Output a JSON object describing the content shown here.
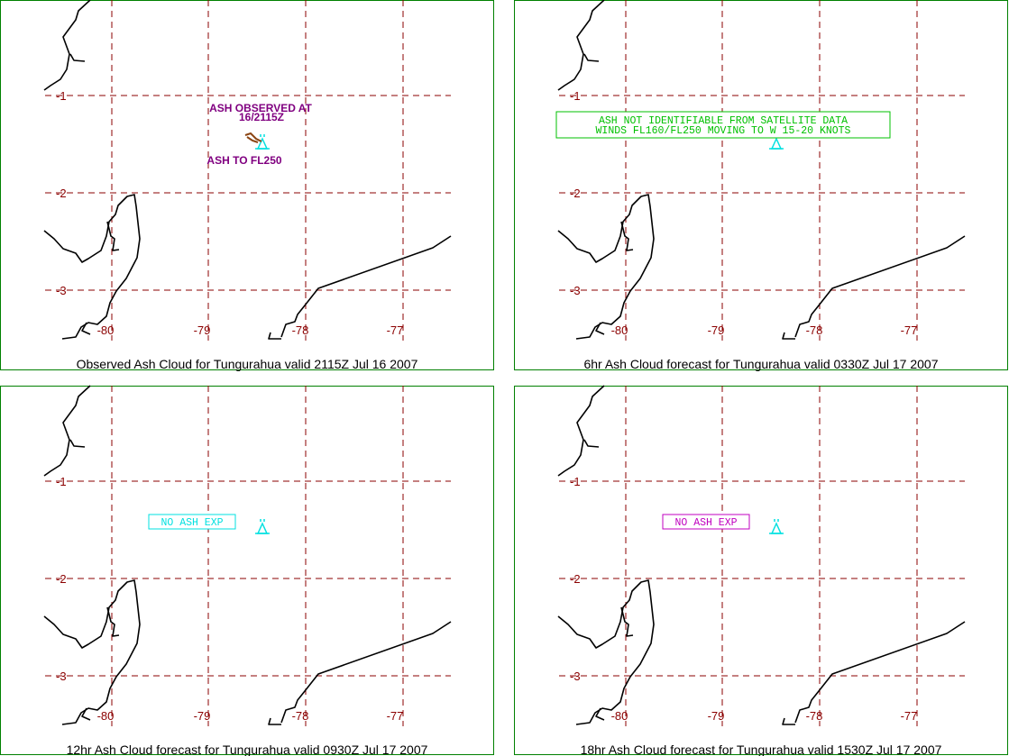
{
  "panels": [
    {
      "caption": "Observed Ash Cloud for Tungurahua valid 2115Z Jul 16 2007",
      "lat_labels": [
        "-1",
        "-2",
        "-3"
      ],
      "lon_labels": [
        "-80",
        "-79",
        "-78",
        "-77"
      ],
      "annotations": [
        {
          "text": "ASH OBSERVED AT",
          "color": "#800080"
        },
        {
          "text": "16/2115Z",
          "color": "#800080"
        },
        {
          "text": "ASH TO FL250",
          "color": "#800080"
        }
      ],
      "boxed_text": [],
      "has_ash_symbol": true,
      "volcano_icon": "volcano-icon"
    },
    {
      "caption": "6hr Ash Cloud forecast for Tungurahua valid 0330Z Jul 17 2007",
      "lat_labels": [
        "-1",
        "-2",
        "-3"
      ],
      "lon_labels": [
        "-80",
        "-79",
        "-78",
        "-77"
      ],
      "annotations": [],
      "boxed_text": [
        {
          "text": "ASH NOT IDENTIFIABLE FROM SATELLITE DATA",
          "color": "#00c000"
        },
        {
          "text": "WINDS FL160/FL250 MOVING TO W 15-20 KNOTS",
          "color": "#00c000"
        }
      ],
      "has_ash_symbol": false,
      "volcano_icon": "volcano-icon"
    },
    {
      "caption": "12hr Ash Cloud forecast for Tungurahua valid 0930Z Jul 17 2007",
      "lat_labels": [
        "-1",
        "-2",
        "-3"
      ],
      "lon_labels": [
        "-80",
        "-79",
        "-78",
        "-77"
      ],
      "annotations": [],
      "boxed_text": [
        {
          "text": "NO ASH EXP",
          "color": "#00e0e0"
        }
      ],
      "has_ash_symbol": false,
      "volcano_icon": "volcano-icon"
    },
    {
      "caption": "18hr Ash Cloud forecast for Tungurahua valid 1530Z Jul 17 2007",
      "lat_labels": [
        "-1",
        "-2",
        "-3"
      ],
      "lon_labels": [
        "-80",
        "-79",
        "-78",
        "-77"
      ],
      "annotations": [],
      "boxed_text": [
        {
          "text": "NO ASH EXP",
          "color": "#c000c0"
        }
      ],
      "has_ash_symbol": false,
      "volcano_icon": "volcano-icon"
    }
  ],
  "colors": {
    "frame": "#008000",
    "grid": "#8b0000",
    "grid_labels": "#8b0000",
    "coastline": "#000000",
    "volcano": "#00e0e0",
    "ash_symbol": "#8b4513"
  }
}
